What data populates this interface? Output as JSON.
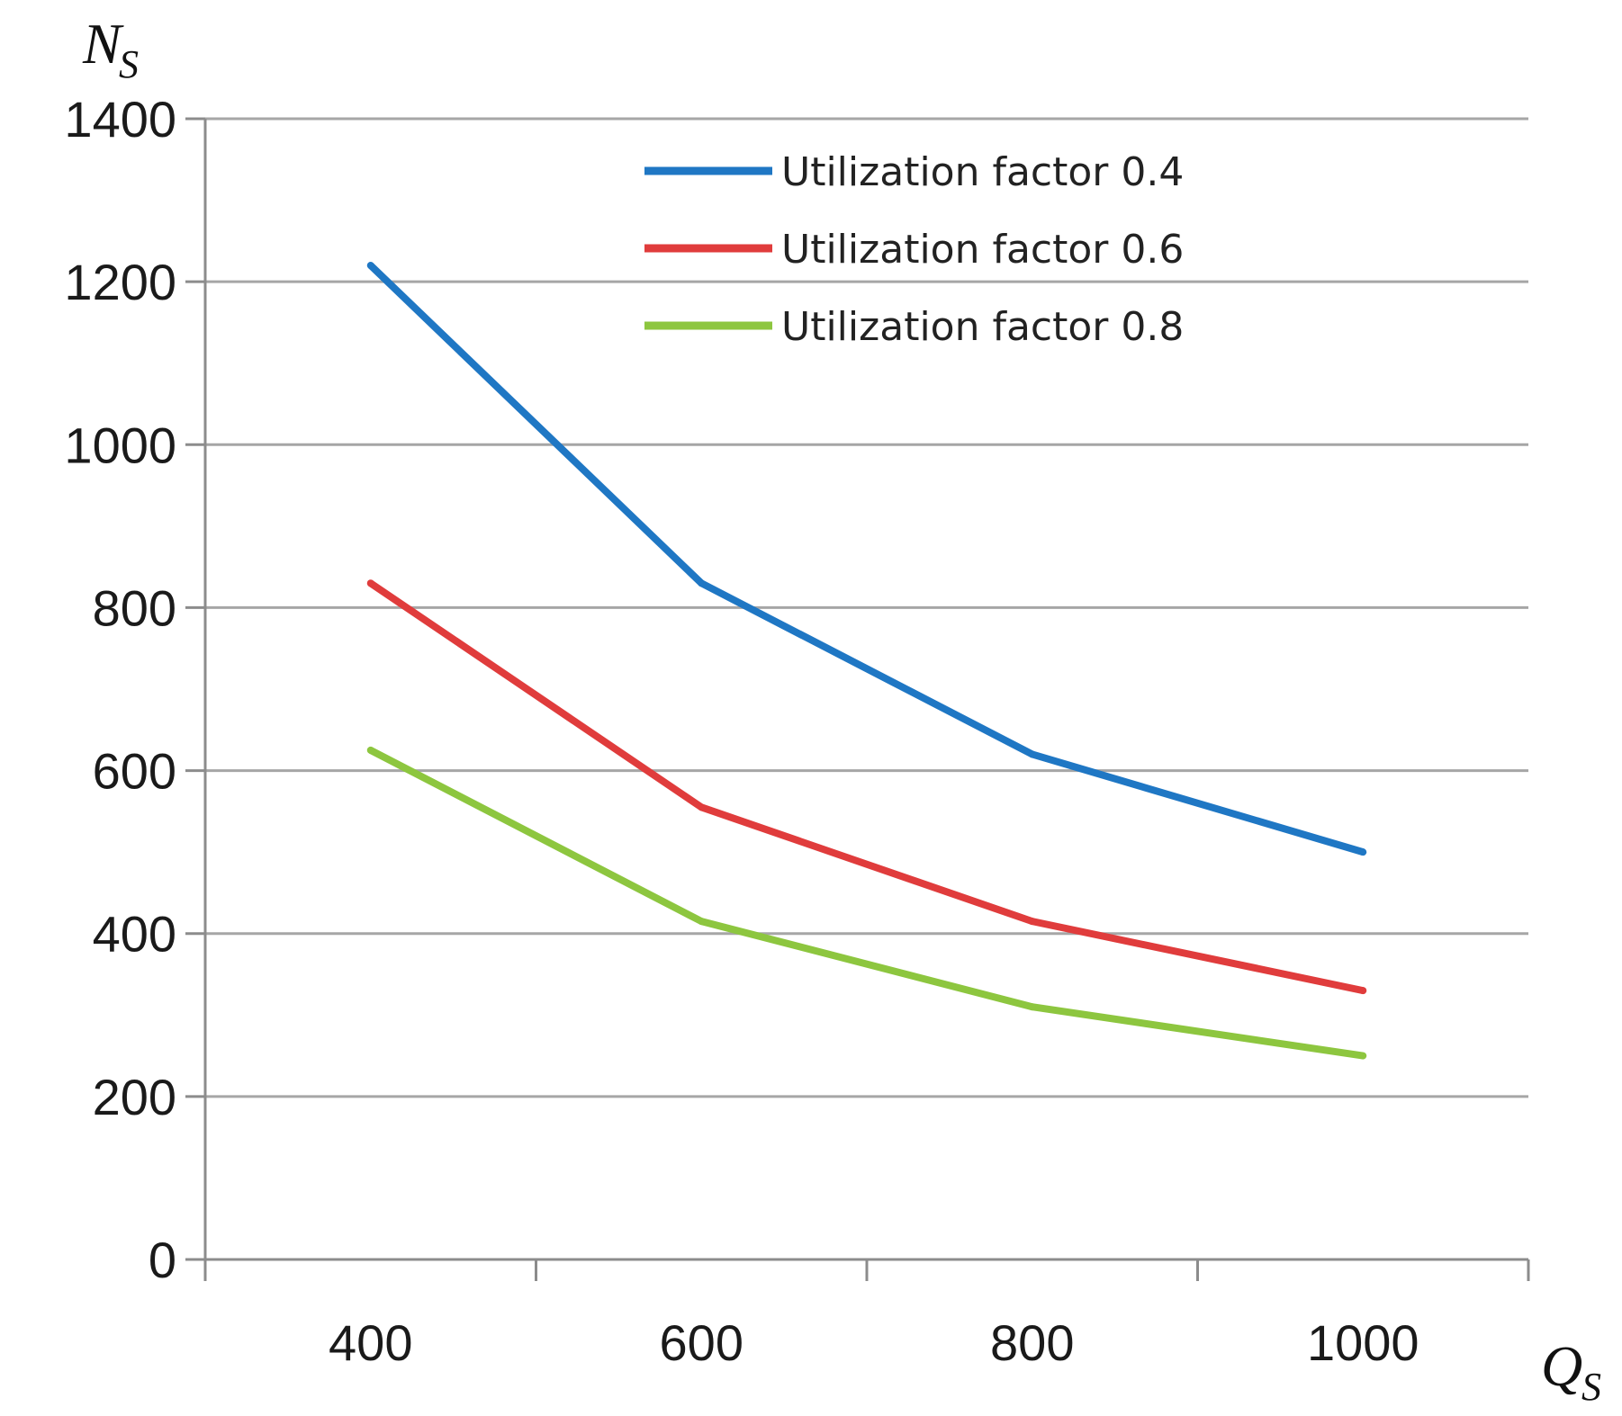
{
  "chart_data": {
    "type": "line",
    "title": "",
    "xlabel": {
      "main": "Q",
      "sub": "S"
    },
    "ylabel": {
      "main": "N",
      "sub": "S"
    },
    "x": [
      400,
      600,
      800,
      1000
    ],
    "x_ticks": [
      "400",
      "600",
      "800",
      "1000"
    ],
    "xlim": [
      300,
      1100
    ],
    "ylim": [
      0,
      1400
    ],
    "y_ticks": [
      0,
      200,
      400,
      600,
      800,
      1000,
      1200,
      1400
    ],
    "grid": true,
    "legend_position": "top-right",
    "series": [
      {
        "name": "Utilization factor 0.4",
        "color": "#1f77c4",
        "values": [
          1220,
          830,
          620,
          500
        ]
      },
      {
        "name": "Utilization factor 0.6",
        "color": "#e03c3c",
        "values": [
          830,
          555,
          415,
          330
        ]
      },
      {
        "name": "Utilization factor 0.8",
        "color": "#8dc63f",
        "values": [
          625,
          415,
          310,
          250
        ]
      }
    ]
  }
}
